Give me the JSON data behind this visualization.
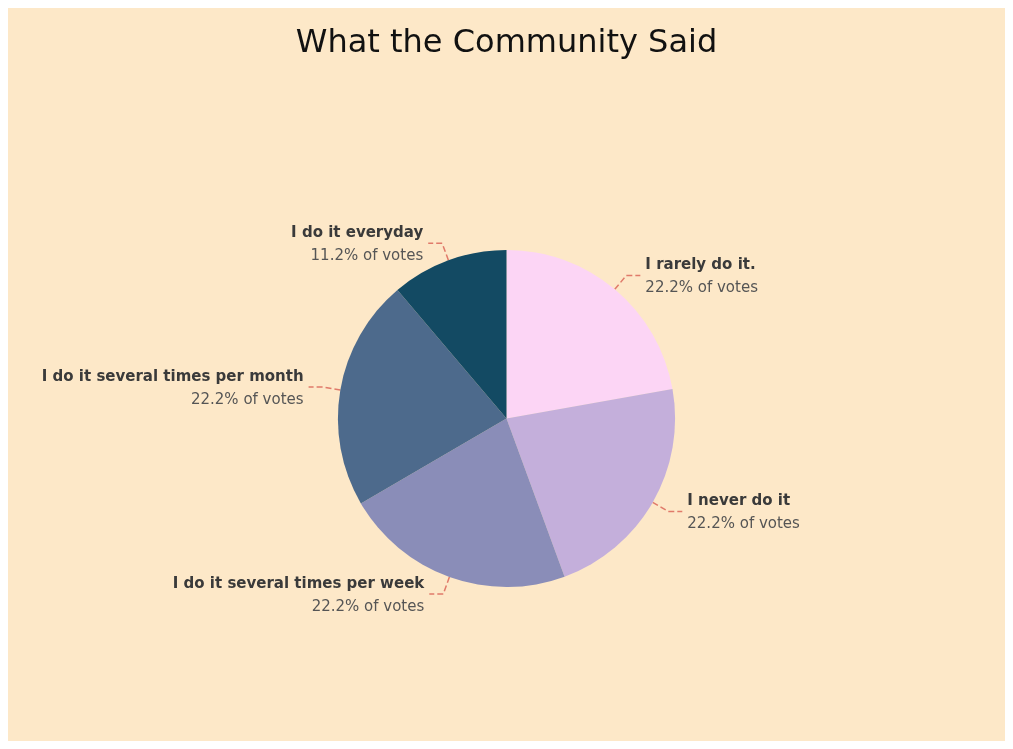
{
  "chart_data": {
    "type": "pie",
    "title": "What the Community Said",
    "categories": [
      "I rarely do it.",
      "I never do it",
      "I do it several times per week",
      "I do it several times per month",
      "I do it everyday"
    ],
    "values": [
      22.2,
      22.2,
      22.2,
      22.2,
      11.2
    ],
    "value_labels": [
      "22.2% of votes",
      "22.2% of votes",
      "22.2% of votes",
      "22.2% of votes",
      "11.2% of votes"
    ],
    "colors": [
      "#fcd5f5",
      "#c4afdb",
      "#8a8db8",
      "#4d6a8c",
      "#134a63"
    ],
    "legend": false
  }
}
